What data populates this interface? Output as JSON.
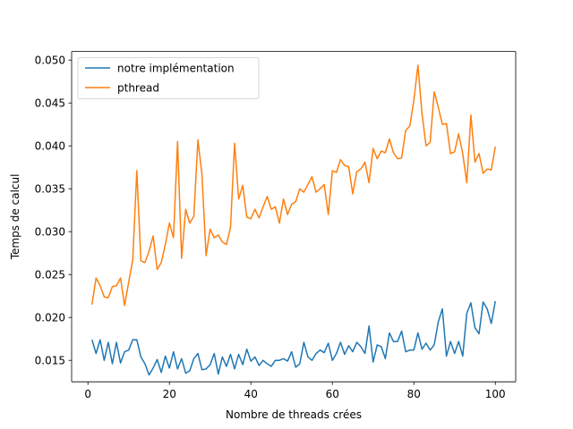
{
  "chart_data": {
    "type": "line",
    "title": "",
    "xlabel": "Nombre de threads crées",
    "ylabel": "Temps de calcul",
    "xlim": [
      -4,
      105
    ],
    "ylim": [
      0.0125,
      0.051
    ],
    "xticks": [
      0,
      20,
      40,
      60,
      80,
      100
    ],
    "yticks": [
      0.015,
      0.02,
      0.025,
      0.03,
      0.035,
      0.04,
      0.045,
      0.05
    ],
    "ytick_labels": [
      "0.015",
      "0.020",
      "0.025",
      "0.030",
      "0.035",
      "0.040",
      "0.045",
      "0.050"
    ],
    "legend_position": "top-left",
    "grid": false,
    "x": [
      1,
      2,
      3,
      4,
      5,
      6,
      7,
      8,
      9,
      10,
      11,
      12,
      13,
      14,
      15,
      16,
      17,
      18,
      19,
      20,
      21,
      22,
      23,
      24,
      25,
      26,
      27,
      28,
      29,
      30,
      31,
      32,
      33,
      34,
      35,
      36,
      37,
      38,
      39,
      40,
      41,
      42,
      43,
      44,
      45,
      46,
      47,
      48,
      49,
      50,
      51,
      52,
      53,
      54,
      55,
      56,
      57,
      58,
      59,
      60,
      61,
      62,
      63,
      64,
      65,
      66,
      67,
      68,
      69,
      70,
      71,
      72,
      73,
      74,
      75,
      76,
      77,
      78,
      79,
      80,
      81,
      82,
      83,
      84,
      85,
      86,
      87,
      88,
      89,
      90,
      91,
      92,
      93,
      94,
      95,
      96,
      97,
      98,
      99,
      100
    ],
    "series": [
      {
        "name": "notre implémentation",
        "color": "#1f77b4",
        "values": [
          0.0174,
          0.0158,
          0.0174,
          0.015,
          0.0171,
          0.0146,
          0.0171,
          0.0147,
          0.016,
          0.0162,
          0.0174,
          0.0174,
          0.0154,
          0.0146,
          0.0133,
          0.0141,
          0.0151,
          0.0136,
          0.0155,
          0.0141,
          0.016,
          0.014,
          0.0152,
          0.0135,
          0.0138,
          0.0152,
          0.0158,
          0.0139,
          0.014,
          0.0145,
          0.0158,
          0.0134,
          0.0154,
          0.0143,
          0.0157,
          0.014,
          0.0157,
          0.0145,
          0.0163,
          0.0149,
          0.0154,
          0.0144,
          0.015,
          0.0146,
          0.0143,
          0.015,
          0.015,
          0.0152,
          0.0149,
          0.016,
          0.0142,
          0.0146,
          0.0171,
          0.0154,
          0.015,
          0.0158,
          0.0162,
          0.0159,
          0.017,
          0.015,
          0.0158,
          0.0171,
          0.0157,
          0.0167,
          0.016,
          0.0171,
          0.0166,
          0.0158,
          0.019,
          0.0148,
          0.0168,
          0.0166,
          0.0152,
          0.0182,
          0.0172,
          0.0172,
          0.0184,
          0.016,
          0.0162,
          0.0162,
          0.0182,
          0.0163,
          0.017,
          0.0162,
          0.0168,
          0.0195,
          0.021,
          0.0155,
          0.0172,
          0.0158,
          0.0172,
          0.0155,
          0.0205,
          0.0217,
          0.0188,
          0.0181,
          0.0218,
          0.021,
          0.0193,
          0.0219
        ]
      },
      {
        "name": "pthread",
        "color": "#ff7f0e",
        "values": [
          0.0215,
          0.0246,
          0.0237,
          0.0224,
          0.0223,
          0.0236,
          0.0237,
          0.0246,
          0.0214,
          0.0241,
          0.0267,
          0.0371,
          0.0266,
          0.0264,
          0.0277,
          0.0295,
          0.0256,
          0.0264,
          0.0285,
          0.031,
          0.0293,
          0.0405,
          0.0269,
          0.0326,
          0.031,
          0.0318,
          0.0407,
          0.0366,
          0.0272,
          0.0303,
          0.0293,
          0.0296,
          0.0288,
          0.0285,
          0.0305,
          0.0403,
          0.0338,
          0.0354,
          0.0317,
          0.0315,
          0.0326,
          0.0316,
          0.0329,
          0.0341,
          0.0326,
          0.0329,
          0.031,
          0.0338,
          0.032,
          0.0332,
          0.0335,
          0.035,
          0.0346,
          0.0355,
          0.0364,
          0.0346,
          0.035,
          0.0355,
          0.032,
          0.0371,
          0.0369,
          0.0384,
          0.0377,
          0.0376,
          0.0344,
          0.037,
          0.0373,
          0.0381,
          0.0357,
          0.0397,
          0.0385,
          0.0394,
          0.0392,
          0.0408,
          0.0392,
          0.0385,
          0.0386,
          0.0418,
          0.0423,
          0.0453,
          0.0494,
          0.0438,
          0.04,
          0.0404,
          0.0463,
          0.0445,
          0.0425,
          0.0426,
          0.0391,
          0.0393,
          0.0414,
          0.0391,
          0.0357,
          0.0436,
          0.0381,
          0.0391,
          0.0368,
          0.0373,
          0.0372,
          0.0399
        ]
      }
    ]
  }
}
